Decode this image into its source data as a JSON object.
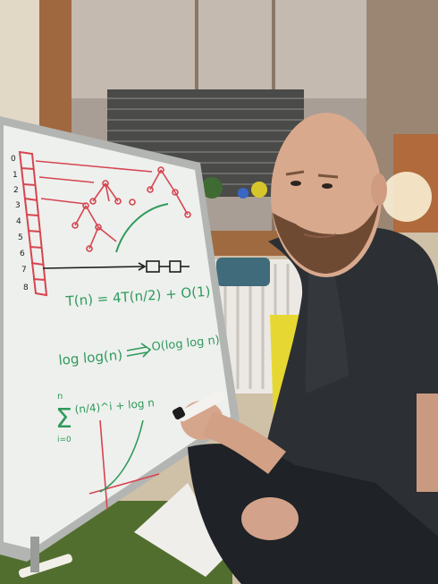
{
  "photo": {
    "subject": "person-with-whiteboard",
    "colors": {
      "wall": "#d7cbb8",
      "wall_dark": "#8a7460",
      "mirror": "#9a8e84",
      "whiteboard": "#eef0ee",
      "whiteboard_frame": "#b9bbb8",
      "red_marker": "#d6454f",
      "green_marker": "#2f9a5a",
      "dark_ink": "#1d1d1d",
      "shirt": "#2c2f33",
      "skin": "#d9a98e",
      "carpet": "#4f6b2c"
    }
  },
  "whiteboard": {
    "index_labels": [
      "0",
      "1",
      "2",
      "3",
      "4",
      "5",
      "6",
      "7",
      "8"
    ],
    "recurrence": "T(n) = 4T(n/2) + O(1)",
    "loglog_left": "log log(n)",
    "loglog_right": "O(log log n)",
    "sum_upper": "n",
    "sum_lower": "i=0",
    "sum_term": "(n/4)^i + log n"
  }
}
